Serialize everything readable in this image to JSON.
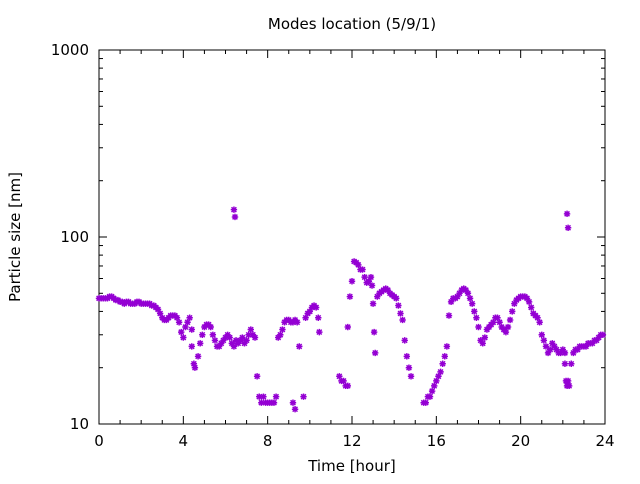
{
  "chart_data": {
    "type": "scatter",
    "title": "Modes location (5/9/1)",
    "xlabel": "Time [hour]",
    "ylabel": "Particle size [nm]",
    "xlim": [
      0,
      24
    ],
    "ylim": [
      10,
      1000
    ],
    "yscale": "log",
    "grid": false,
    "marker_color": "#9400d3",
    "x_ticks": [
      0,
      4,
      8,
      12,
      16,
      20,
      24
    ],
    "x_tick_labels": [
      "0",
      "4",
      "8",
      "12",
      "16",
      "20",
      "24"
    ],
    "y_ticks": [
      10,
      100,
      1000
    ],
    "y_tick_labels": [
      "10",
      "100",
      "1000"
    ],
    "points": [
      [
        0.0,
        47
      ],
      [
        0.1,
        47
      ],
      [
        0.2,
        47
      ],
      [
        0.3,
        47
      ],
      [
        0.4,
        47
      ],
      [
        0.5,
        48
      ],
      [
        0.6,
        48
      ],
      [
        0.7,
        47
      ],
      [
        0.8,
        46
      ],
      [
        0.9,
        46
      ],
      [
        1.0,
        45
      ],
      [
        1.1,
        45
      ],
      [
        1.2,
        44
      ],
      [
        1.3,
        45
      ],
      [
        1.4,
        45
      ],
      [
        1.5,
        44
      ],
      [
        1.6,
        44
      ],
      [
        1.7,
        44
      ],
      [
        1.8,
        45
      ],
      [
        1.9,
        45
      ],
      [
        2.0,
        44
      ],
      [
        2.1,
        44
      ],
      [
        2.2,
        44
      ],
      [
        2.3,
        44
      ],
      [
        2.4,
        44
      ],
      [
        2.5,
        43
      ],
      [
        2.6,
        43
      ],
      [
        2.7,
        42
      ],
      [
        2.8,
        41
      ],
      [
        2.9,
        39
      ],
      [
        3.0,
        37
      ],
      [
        3.1,
        36
      ],
      [
        3.2,
        36
      ],
      [
        3.3,
        37
      ],
      [
        3.4,
        38
      ],
      [
        3.5,
        38
      ],
      [
        3.6,
        38
      ],
      [
        3.7,
        37
      ],
      [
        3.8,
        35
      ],
      [
        3.9,
        31
      ],
      [
        4.0,
        29
      ],
      [
        4.1,
        33
      ],
      [
        4.2,
        35
      ],
      [
        4.3,
        37
      ],
      [
        4.4,
        32
      ],
      [
        4.4,
        26
      ],
      [
        4.5,
        21
      ],
      [
        4.55,
        20
      ],
      [
        4.7,
        23
      ],
      [
        4.8,
        27
      ],
      [
        4.9,
        30
      ],
      [
        5.0,
        33
      ],
      [
        5.1,
        34
      ],
      [
        5.2,
        34
      ],
      [
        5.3,
        33
      ],
      [
        5.4,
        30
      ],
      [
        5.5,
        28
      ],
      [
        5.6,
        26
      ],
      [
        5.7,
        26
      ],
      [
        5.8,
        27
      ],
      [
        5.9,
        28
      ],
      [
        6.0,
        29
      ],
      [
        6.1,
        30
      ],
      [
        6.2,
        29
      ],
      [
        6.3,
        27
      ],
      [
        6.4,
        26
      ],
      [
        6.4,
        140
      ],
      [
        6.45,
        128
      ],
      [
        6.5,
        28
      ],
      [
        6.6,
        27
      ],
      [
        6.7,
        28
      ],
      [
        6.8,
        29
      ],
      [
        6.9,
        27
      ],
      [
        7.0,
        28
      ],
      [
        7.1,
        30
      ],
      [
        7.2,
        32
      ],
      [
        7.3,
        30
      ],
      [
        7.4,
        29
      ],
      [
        7.5,
        18
      ],
      [
        7.6,
        14
      ],
      [
        7.7,
        13
      ],
      [
        7.8,
        14
      ],
      [
        7.9,
        13
      ],
      [
        8.0,
        13
      ],
      [
        8.1,
        13
      ],
      [
        8.2,
        13
      ],
      [
        8.3,
        13
      ],
      [
        8.4,
        14
      ],
      [
        8.5,
        29
      ],
      [
        8.6,
        30
      ],
      [
        8.7,
        32
      ],
      [
        8.8,
        35
      ],
      [
        8.9,
        36
      ],
      [
        9.0,
        36
      ],
      [
        9.1,
        35
      ],
      [
        9.2,
        35
      ],
      [
        9.3,
        36
      ],
      [
        9.4,
        35
      ],
      [
        9.2,
        13
      ],
      [
        9.3,
        12
      ],
      [
        9.5,
        26
      ],
      [
        9.7,
        14
      ],
      [
        9.8,
        37
      ],
      [
        9.9,
        39
      ],
      [
        10.0,
        40
      ],
      [
        10.1,
        42
      ],
      [
        10.2,
        43
      ],
      [
        10.3,
        42
      ],
      [
        10.4,
        37
      ],
      [
        10.45,
        31
      ],
      [
        11.4,
        18
      ],
      [
        11.5,
        17
      ],
      [
        11.6,
        17
      ],
      [
        11.7,
        16
      ],
      [
        11.8,
        16
      ],
      [
        11.8,
        33
      ],
      [
        11.9,
        48
      ],
      [
        12.0,
        58
      ],
      [
        12.1,
        74
      ],
      [
        12.2,
        73
      ],
      [
        12.3,
        71
      ],
      [
        12.4,
        67
      ],
      [
        12.5,
        67
      ],
      [
        12.6,
        61
      ],
      [
        12.7,
        57
      ],
      [
        12.8,
        58
      ],
      [
        12.9,
        61
      ],
      [
        12.95,
        55
      ],
      [
        13.0,
        44
      ],
      [
        13.05,
        31
      ],
      [
        13.1,
        24
      ],
      [
        13.2,
        48
      ],
      [
        13.3,
        50
      ],
      [
        13.4,
        51
      ],
      [
        13.5,
        52
      ],
      [
        13.6,
        53
      ],
      [
        13.7,
        52
      ],
      [
        13.8,
        50
      ],
      [
        13.9,
        49
      ],
      [
        14.0,
        48
      ],
      [
        14.1,
        47
      ],
      [
        14.2,
        43
      ],
      [
        14.3,
        39
      ],
      [
        14.4,
        36
      ],
      [
        14.5,
        28
      ],
      [
        14.6,
        23
      ],
      [
        14.7,
        20
      ],
      [
        14.8,
        18
      ],
      [
        15.4,
        13
      ],
      [
        15.5,
        13
      ],
      [
        15.6,
        14
      ],
      [
        15.7,
        14
      ],
      [
        15.8,
        15
      ],
      [
        15.9,
        16
      ],
      [
        16.0,
        17
      ],
      [
        16.1,
        18
      ],
      [
        16.2,
        19
      ],
      [
        16.3,
        21
      ],
      [
        16.4,
        23
      ],
      [
        16.5,
        26
      ],
      [
        16.6,
        38
      ],
      [
        16.7,
        45
      ],
      [
        16.8,
        47
      ],
      [
        16.9,
        47
      ],
      [
        17.0,
        48
      ],
      [
        17.1,
        50
      ],
      [
        17.2,
        52
      ],
      [
        17.3,
        53
      ],
      [
        17.4,
        52
      ],
      [
        17.5,
        50
      ],
      [
        17.6,
        47
      ],
      [
        17.7,
        44
      ],
      [
        17.8,
        40
      ],
      [
        17.9,
        37
      ],
      [
        18.0,
        33
      ],
      [
        18.1,
        28
      ],
      [
        18.2,
        27
      ],
      [
        18.3,
        29
      ],
      [
        18.4,
        32
      ],
      [
        18.5,
        33
      ],
      [
        18.6,
        34
      ],
      [
        18.7,
        35
      ],
      [
        18.8,
        37
      ],
      [
        18.9,
        37
      ],
      [
        19.0,
        35
      ],
      [
        19.1,
        33
      ],
      [
        19.2,
        32
      ],
      [
        19.3,
        31
      ],
      [
        19.4,
        33
      ],
      [
        19.5,
        36
      ],
      [
        19.6,
        40
      ],
      [
        19.7,
        44
      ],
      [
        19.8,
        46
      ],
      [
        19.9,
        47
      ],
      [
        20.0,
        48
      ],
      [
        20.1,
        48
      ],
      [
        20.2,
        48
      ],
      [
        20.3,
        47
      ],
      [
        20.4,
        45
      ],
      [
        20.5,
        42
      ],
      [
        20.6,
        39
      ],
      [
        20.7,
        38
      ],
      [
        20.8,
        37
      ],
      [
        20.9,
        35
      ],
      [
        21.0,
        30
      ],
      [
        21.1,
        28
      ],
      [
        21.2,
        26
      ],
      [
        21.3,
        24
      ],
      [
        21.4,
        25
      ],
      [
        21.5,
        27
      ],
      [
        21.6,
        26
      ],
      [
        21.7,
        25
      ],
      [
        21.8,
        24
      ],
      [
        21.9,
        24
      ],
      [
        22.0,
        25
      ],
      [
        22.1,
        24
      ],
      [
        22.1,
        21
      ],
      [
        22.15,
        17
      ],
      [
        22.2,
        16
      ],
      [
        22.25,
        17
      ],
      [
        22.3,
        16
      ],
      [
        22.2,
        133
      ],
      [
        22.25,
        112
      ],
      [
        22.4,
        21
      ],
      [
        22.5,
        24
      ],
      [
        22.6,
        25
      ],
      [
        22.7,
        25
      ],
      [
        22.8,
        26
      ],
      [
        22.9,
        26
      ],
      [
        23.0,
        26
      ],
      [
        23.1,
        26
      ],
      [
        23.2,
        27
      ],
      [
        23.3,
        27
      ],
      [
        23.4,
        27
      ],
      [
        23.5,
        28
      ],
      [
        23.6,
        28
      ],
      [
        23.7,
        29
      ],
      [
        23.8,
        30
      ],
      [
        23.9,
        30
      ]
    ]
  }
}
